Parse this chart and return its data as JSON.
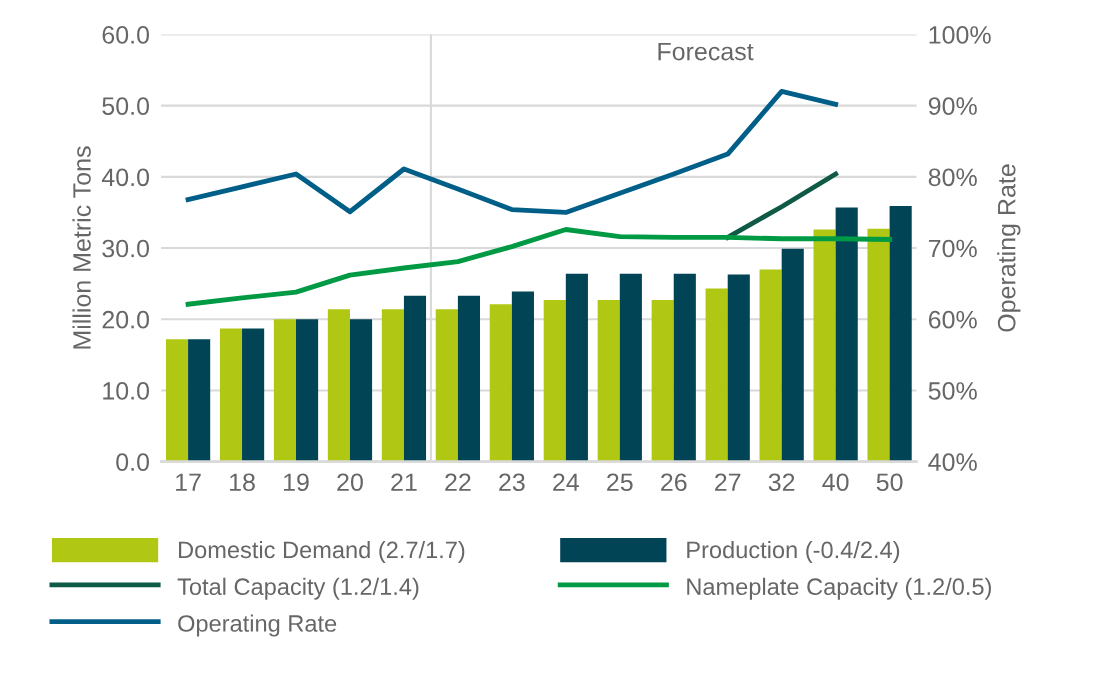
{
  "chart_data": {
    "type": "bar",
    "ylabel": "Million Metric Tons",
    "y2label": "Operating Rate",
    "categories": [
      "17",
      "18",
      "19",
      "20",
      "21",
      "22",
      "23",
      "24",
      "25",
      "26",
      "27",
      "32",
      "40",
      "50"
    ],
    "series": [
      {
        "name": "Domestic Demand (2.7/1.7)",
        "color": "#b0c814",
        "values": [
          17.2,
          18.7,
          20.0,
          21.4,
          21.4,
          21.4,
          22.1,
          22.7,
          22.7,
          22.7,
          24.3,
          27.0,
          32.6,
          32.7
        ]
      },
      {
        "name": "Production (-0.4/2.4)",
        "color": "#004455",
        "values": [
          17.2,
          18.7,
          20.0,
          20.0,
          23.3,
          23.3,
          23.9,
          26.4,
          26.4,
          26.4,
          26.3,
          29.9,
          35.7,
          35.9
        ]
      },
      {
        "name": "Total Capacity (1.2/1.4)",
        "type": "line",
        "color": "#0f5a46",
        "values": [
          null,
          null,
          null,
          null,
          null,
          null,
          null,
          null,
          null,
          null,
          31.5,
          35.8,
          40.4,
          null
        ]
      },
      {
        "name": "Nameplate Capacity (1.2/0.5)",
        "type": "line",
        "color": "#009a44",
        "values": [
          22.1,
          23.0,
          23.8,
          26.2,
          27.2,
          28.1,
          30.2,
          32.6,
          31.6,
          31.5,
          31.5,
          31.3,
          31.3,
          31.2
        ]
      },
      {
        "name": "Operating Rate",
        "type": "line",
        "axis": "y2",
        "color": "#005f88",
        "values": [
          76.8,
          78.6,
          80.4,
          75.1,
          81.1,
          78.3,
          75.4,
          75.0,
          77.7,
          80.4,
          83.2,
          92.0,
          90.2,
          null
        ]
      }
    ],
    "ylim": [
      0,
      60
    ],
    "yticks": [
      {
        "value": 0,
        "label": "0.0"
      },
      {
        "value": 10,
        "label": "10.0"
      },
      {
        "value": 20,
        "label": "20.0"
      },
      {
        "value": 30,
        "label": "30.0"
      },
      {
        "value": 40,
        "label": "40.0"
      },
      {
        "value": 50,
        "label": "50.0"
      },
      {
        "value": 60,
        "label": "60.0"
      }
    ],
    "y2lim": [
      40,
      100
    ],
    "y2ticks": [
      {
        "value": 40,
        "label": "40%"
      },
      {
        "value": 50,
        "label": "50%"
      },
      {
        "value": 60,
        "label": "60%"
      },
      {
        "value": 70,
        "label": "70%"
      },
      {
        "value": 80,
        "label": "80%"
      },
      {
        "value": 90,
        "label": "90%"
      },
      {
        "value": 100,
        "label": "100%"
      }
    ],
    "annotations": [
      "Forecast"
    ],
    "grid": "y",
    "legend": "bottom",
    "marker": "none",
    "line_style": "solid"
  }
}
